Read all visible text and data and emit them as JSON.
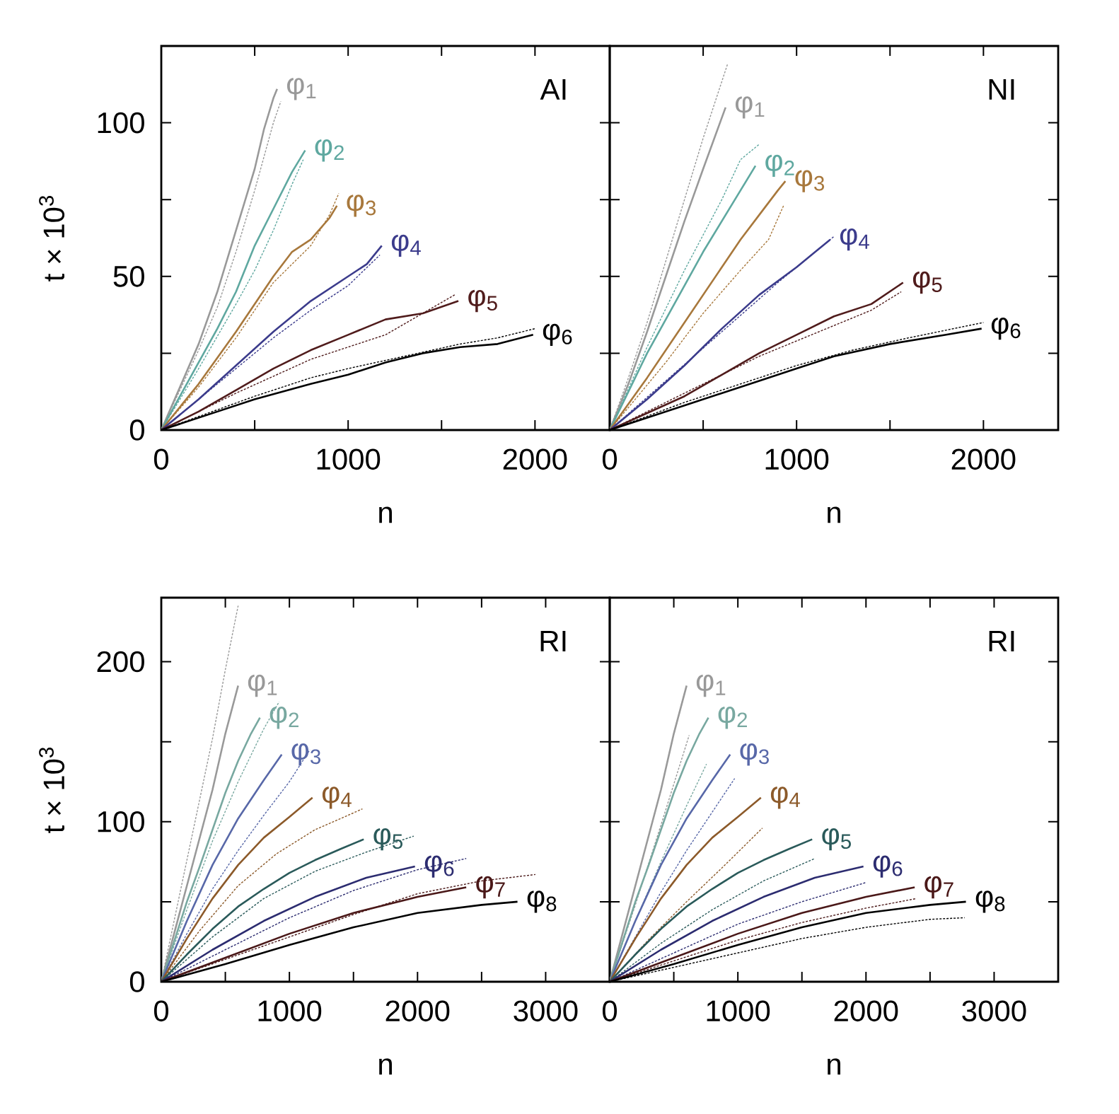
{
  "chart_data": [
    {
      "type": "line",
      "xlabel": "n",
      "ylabel": "t × 10$^{3}$",
      "annotations": [
        "AI"
      ],
      "xlim": [
        0,
        2400
      ],
      "ylim": [
        0,
        125
      ],
      "xticks": [
        0,
        {
          "value": 500,
          "label": null
        },
        1000,
        {
          "value": 1500,
          "label": null
        },
        2000
      ],
      "yticks": [
        0,
        {
          "value": 25,
          "label": null
        },
        50,
        {
          "value": 75,
          "label": null
        },
        100
      ],
      "marker": "none",
      "series": [
        {
          "name": "φ$_{1}$",
          "color": "#999999",
          "line_style": "solid",
          "x": [
            0,
            100,
            200,
            300,
            400,
            500,
            550,
            600,
            620
          ],
          "values": [
            0,
            14,
            28,
            45,
            65,
            85,
            98,
            108,
            111
          ]
        },
        {
          "color": "#999999",
          "line_style": "dotted",
          "x": [
            0,
            100,
            200,
            300,
            400,
            500,
            600,
            640
          ],
          "values": [
            0,
            13,
            26,
            40,
            58,
            78,
            100,
            107
          ]
        },
        {
          "name": "φ$_{2}$",
          "color": "#5fa8a0",
          "line_style": "solid",
          "x": [
            0,
            100,
            200,
            300,
            400,
            500,
            600,
            700,
            770
          ],
          "values": [
            0,
            11,
            22,
            33,
            45,
            60,
            72,
            84,
            91
          ]
        },
        {
          "color": "#5fa8a0",
          "line_style": "dotted",
          "x": [
            0,
            200,
            400,
            500,
            600,
            700,
            760
          ],
          "values": [
            0,
            20,
            41,
            52,
            65,
            80,
            88
          ]
        },
        {
          "name": "φ$_{3}$",
          "color": "#a8783c",
          "line_style": "solid",
          "x": [
            0,
            200,
            400,
            600,
            700,
            800,
            900,
            940
          ],
          "values": [
            0,
            15,
            32,
            50,
            58,
            62,
            69,
            73
          ]
        },
        {
          "color": "#a8783c",
          "line_style": "dotted",
          "x": [
            0,
            200,
            400,
            600,
            800,
            900,
            950
          ],
          "values": [
            0,
            14,
            30,
            48,
            60,
            70,
            77
          ]
        },
        {
          "name": "φ$_{4}$",
          "color": "#3c3c8c",
          "line_style": "solid",
          "x": [
            0,
            200,
            400,
            600,
            800,
            1000,
            1100,
            1180
          ],
          "values": [
            0,
            10,
            21,
            32,
            42,
            50,
            54,
            60
          ]
        },
        {
          "color": "#3c3c8c",
          "line_style": "dotted",
          "x": [
            0,
            300,
            600,
            800,
            1000,
            1170
          ],
          "values": [
            0,
            15,
            30,
            39,
            47,
            57
          ]
        },
        {
          "name": "φ$_{5}$",
          "color": "#501c1c",
          "line_style": "solid",
          "x": [
            0,
            200,
            400,
            600,
            800,
            1000,
            1200,
            1400,
            1590
          ],
          "values": [
            0,
            6,
            13,
            20,
            26,
            31,
            36,
            38,
            42
          ]
        },
        {
          "color": "#501c1c",
          "line_style": "dotted",
          "x": [
            0,
            400,
            800,
            1000,
            1200,
            1400,
            1570
          ],
          "values": [
            0,
            12,
            23,
            27,
            31,
            38,
            44
          ]
        },
        {
          "name": "φ$_{6}$",
          "color": "#000000",
          "line_style": "solid",
          "x": [
            0,
            200,
            500,
            800,
            1000,
            1200,
            1400,
            1600,
            1800,
            1990
          ],
          "values": [
            0,
            4,
            10,
            15,
            18,
            22,
            25,
            27,
            28,
            31
          ]
        },
        {
          "color": "#000000",
          "line_style": "dotted",
          "x": [
            0,
            500,
            800,
            1000,
            1300,
            1600,
            1800,
            2000
          ],
          "values": [
            0,
            11,
            17,
            20,
            24,
            28,
            30,
            33
          ]
        }
      ]
    },
    {
      "type": "line",
      "xlabel": "n",
      "annotations": [
        "NI"
      ],
      "xlim": [
        0,
        2400
      ],
      "ylim": [
        0,
        125
      ],
      "tick_labels": "x",
      "xticks": [
        0,
        {
          "value": 500,
          "label": null
        },
        1000,
        {
          "value": 1500,
          "label": null
        },
        2000
      ],
      "yticks": [
        0,
        {
          "value": 25,
          "label": null
        },
        50,
        {
          "value": 75,
          "label": null
        },
        100
      ],
      "marker": "none",
      "series": [
        {
          "name": "φ$_{1}$",
          "color": "#999999",
          "line_style": "solid",
          "x": [
            0,
            100,
            200,
            300,
            400,
            500,
            620
          ],
          "values": [
            0,
            15,
            32,
            50,
            68,
            85,
            105
          ]
        },
        {
          "color": "#999999",
          "line_style": "dotted",
          "x": [
            0,
            100,
            200,
            300,
            400,
            500,
            630
          ],
          "values": [
            0,
            17,
            35,
            55,
            75,
            95,
            119
          ]
        },
        {
          "name": "φ$_{2}$",
          "color": "#5fa8a0",
          "line_style": "solid",
          "x": [
            0,
            200,
            400,
            500,
            600,
            700,
            780
          ],
          "values": [
            0,
            25,
            47,
            58,
            68,
            78,
            86
          ]
        },
        {
          "color": "#5fa8a0",
          "line_style": "dotted",
          "x": [
            0,
            200,
            400,
            600,
            700,
            800
          ],
          "values": [
            0,
            27,
            52,
            75,
            88,
            93
          ]
        },
        {
          "name": "φ$_{3}$",
          "color": "#a8783c",
          "line_style": "solid",
          "x": [
            0,
            200,
            400,
            600,
            700,
            800,
            900,
            940
          ],
          "values": [
            0,
            17,
            35,
            53,
            62,
            70,
            78,
            81
          ]
        },
        {
          "color": "#a8783c",
          "line_style": "dotted",
          "x": [
            0,
            300,
            500,
            700,
            850,
            930
          ],
          "values": [
            0,
            22,
            38,
            52,
            62,
            73
          ]
        },
        {
          "name": "φ$_{4}$",
          "color": "#3c3c8c",
          "line_style": "solid",
          "x": [
            0,
            200,
            400,
            600,
            800,
            1000,
            1100,
            1180
          ],
          "values": [
            0,
            10,
            21,
            33,
            44,
            53,
            58,
            62
          ]
        },
        {
          "color": "#3c3c8c",
          "line_style": "dotted",
          "x": [
            0,
            300,
            600,
            900,
            1100,
            1200
          ],
          "values": [
            0,
            16,
            32,
            48,
            58,
            63
          ]
        },
        {
          "name": "φ$_{5}$",
          "color": "#501c1c",
          "line_style": "solid",
          "x": [
            0,
            400,
            800,
            1000,
            1200,
            1400,
            1570
          ],
          "values": [
            0,
            11,
            25,
            31,
            37,
            41,
            48
          ]
        },
        {
          "color": "#501c1c",
          "line_style": "dotted",
          "x": [
            0,
            400,
            800,
            1000,
            1200,
            1400,
            1560
          ],
          "values": [
            0,
            12,
            24,
            29,
            34,
            39,
            45
          ]
        },
        {
          "name": "φ$_{6}$",
          "color": "#000000",
          "line_style": "solid",
          "x": [
            0,
            400,
            800,
            1000,
            1200,
            1500,
            1800,
            1990
          ],
          "values": [
            0,
            8,
            16,
            20,
            24,
            28,
            31,
            33
          ]
        },
        {
          "color": "#000000",
          "line_style": "dotted",
          "x": [
            0,
            400,
            800,
            1000,
            1300,
            1600,
            2000
          ],
          "values": [
            0,
            9,
            17,
            21,
            26,
            30,
            35
          ]
        }
      ]
    },
    {
      "type": "line",
      "xlabel": "n",
      "ylabel": "t × 10$^{3}$",
      "annotations": [
        "RI"
      ],
      "xlim": [
        0,
        3500
      ],
      "ylim": [
        0,
        240
      ],
      "xticks": [
        0,
        {
          "value": 500,
          "label": null
        },
        1000,
        {
          "value": 1500,
          "label": null
        },
        2000,
        {
          "value": 2500,
          "label": null
        },
        3000
      ],
      "yticks": [
        0,
        {
          "value": 50,
          "label": null
        },
        100,
        {
          "value": 150,
          "label": null
        },
        200
      ],
      "marker": "none",
      "series": [
        {
          "name": "φ$_{1}$",
          "color": "#999999",
          "line_style": "solid",
          "x": [
            0,
            100,
            200,
            300,
            400,
            500,
            600
          ],
          "values": [
            0,
            30,
            60,
            90,
            120,
            155,
            185
          ]
        },
        {
          "color": "#999999",
          "line_style": "dotted",
          "x": [
            0,
            100,
            200,
            300,
            400,
            500,
            600
          ],
          "values": [
            0,
            38,
            76,
            114,
            152,
            195,
            235
          ]
        },
        {
          "name": "φ$_{2}$",
          "color": "#78a8a0",
          "line_style": "solid",
          "x": [
            0,
            100,
            200,
            300,
            400,
            500,
            600,
            700,
            770
          ],
          "values": [
            0,
            25,
            50,
            72,
            95,
            118,
            138,
            155,
            165
          ]
        },
        {
          "color": "#78a8a0",
          "line_style": "dotted",
          "x": [
            0,
            200,
            400,
            600,
            800,
            920
          ],
          "values": [
            0,
            45,
            88,
            125,
            158,
            175
          ]
        },
        {
          "name": "φ$_{3}$",
          "color": "#5868a8",
          "line_style": "solid",
          "x": [
            0,
            200,
            400,
            600,
            800,
            940
          ],
          "values": [
            0,
            38,
            73,
            102,
            126,
            142
          ]
        },
        {
          "color": "#5868a8",
          "line_style": "dotted",
          "x": [
            0,
            200,
            400,
            600,
            800,
            1000,
            1160
          ],
          "values": [
            0,
            30,
            58,
            82,
            104,
            125,
            145
          ]
        },
        {
          "name": "φ$_{4}$",
          "color": "#8c5a2a",
          "line_style": "solid",
          "x": [
            0,
            200,
            400,
            600,
            800,
            1000,
            1180
          ],
          "values": [
            0,
            27,
            52,
            73,
            90,
            103,
            115
          ]
        },
        {
          "color": "#8c5a2a",
          "line_style": "dotted",
          "x": [
            0,
            300,
            600,
            900,
            1200,
            1400,
            1570
          ],
          "values": [
            0,
            32,
            60,
            80,
            95,
            102,
            108
          ]
        },
        {
          "name": "φ$_{5}$",
          "color": "#2a5a5a",
          "line_style": "solid",
          "x": [
            0,
            200,
            400,
            600,
            800,
            1000,
            1200,
            1400,
            1580
          ],
          "values": [
            0,
            17,
            33,
            47,
            58,
            68,
            76,
            83,
            89
          ]
        },
        {
          "color": "#2a5a5a",
          "line_style": "dotted",
          "x": [
            0,
            400,
            800,
            1200,
            1600,
            1970
          ],
          "values": [
            0,
            28,
            52,
            69,
            81,
            91
          ]
        },
        {
          "name": "φ$_{6}$",
          "color": "#2c2c70",
          "line_style": "solid",
          "x": [
            0,
            400,
            800,
            1200,
            1600,
            1980
          ],
          "values": [
            0,
            20,
            38,
            53,
            65,
            72
          ]
        },
        {
          "color": "#2c2c70",
          "line_style": "dotted",
          "x": [
            0,
            500,
            1000,
            1500,
            2000,
            2380
          ],
          "values": [
            0,
            20,
            40,
            57,
            70,
            77
          ]
        },
        {
          "name": "φ$_{7}$",
          "color": "#4a1818",
          "line_style": "solid",
          "x": [
            0,
            500,
            1000,
            1500,
            2000,
            2380
          ],
          "values": [
            0,
            15,
            30,
            43,
            53,
            59
          ]
        },
        {
          "color": "#4a1818",
          "line_style": "dotted",
          "x": [
            0,
            500,
            1000,
            1500,
            2000,
            2500,
            2920
          ],
          "values": [
            0,
            14,
            28,
            42,
            55,
            63,
            67
          ]
        },
        {
          "name": "φ$_{8}$",
          "color": "#000000",
          "line_style": "solid",
          "x": [
            0,
            500,
            1000,
            1500,
            2000,
            2500,
            2780
          ],
          "values": [
            0,
            11,
            23,
            34,
            43,
            48,
            50
          ]
        }
      ]
    },
    {
      "type": "line",
      "xlabel": "n",
      "annotations": [
        "RI"
      ],
      "xlim": [
        0,
        3500
      ],
      "ylim": [
        0,
        240
      ],
      "tick_labels": "x",
      "xticks": [
        0,
        {
          "value": 500,
          "label": null
        },
        1000,
        {
          "value": 1500,
          "label": null
        },
        2000,
        {
          "value": 2500,
          "label": null
        },
        3000
      ],
      "yticks": [
        0,
        {
          "value": 50,
          "label": null
        },
        100,
        {
          "value": 150,
          "label": null
        },
        200
      ],
      "marker": "none",
      "series": [
        {
          "name": "φ$_{1}$",
          "color": "#999999",
          "line_style": "solid",
          "x": [
            0,
            100,
            200,
            300,
            400,
            500,
            600
          ],
          "values": [
            0,
            30,
            60,
            90,
            120,
            155,
            185
          ]
        },
        {
          "color": "#999999",
          "line_style": "dotted",
          "x": [
            0,
            200,
            400,
            620
          ],
          "values": [
            0,
            48,
            98,
            154
          ]
        },
        {
          "name": "φ$_{2}$",
          "color": "#78a8a0",
          "line_style": "solid",
          "x": [
            0,
            100,
            200,
            300,
            400,
            500,
            600,
            700,
            770
          ],
          "values": [
            0,
            25,
            50,
            72,
            95,
            118,
            138,
            155,
            165
          ]
        },
        {
          "color": "#78a8a0",
          "line_style": "dotted",
          "x": [
            0,
            200,
            400,
            600,
            755
          ],
          "values": [
            0,
            38,
            75,
            110,
            136
          ]
        },
        {
          "name": "φ$_{3}$",
          "color": "#5868a8",
          "line_style": "solid",
          "x": [
            0,
            200,
            400,
            600,
            800,
            940
          ],
          "values": [
            0,
            38,
            73,
            102,
            126,
            142
          ]
        },
        {
          "color": "#5868a8",
          "line_style": "dotted",
          "x": [
            0,
            200,
            400,
            600,
            800,
            975
          ],
          "values": [
            0,
            28,
            56,
            82,
            106,
            127
          ]
        },
        {
          "name": "φ$_{4}$",
          "color": "#8c5a2a",
          "line_style": "solid",
          "x": [
            0,
            200,
            400,
            600,
            800,
            1000,
            1180
          ],
          "values": [
            0,
            27,
            52,
            73,
            90,
            103,
            115
          ]
        },
        {
          "color": "#8c5a2a",
          "line_style": "dotted",
          "x": [
            0,
            300,
            600,
            900,
            1191
          ],
          "values": [
            0,
            26,
            50,
            73,
            96
          ]
        },
        {
          "name": "φ$_{5}$",
          "color": "#2a5a5a",
          "line_style": "solid",
          "x": [
            0,
            200,
            400,
            600,
            800,
            1000,
            1200,
            1400,
            1580
          ],
          "values": [
            0,
            17,
            33,
            47,
            58,
            68,
            76,
            83,
            89
          ]
        },
        {
          "color": "#2a5a5a",
          "line_style": "dotted",
          "x": [
            0,
            400,
            800,
            1200,
            1600
          ],
          "values": [
            0,
            24,
            45,
            63,
            77
          ]
        },
        {
          "name": "φ$_{6}$",
          "color": "#2c2c70",
          "line_style": "solid",
          "x": [
            0,
            400,
            800,
            1200,
            1600,
            1980
          ],
          "values": [
            0,
            20,
            38,
            53,
            65,
            72
          ]
        },
        {
          "color": "#2c2c70",
          "line_style": "dotted",
          "x": [
            0,
            500,
            1000,
            1500,
            2000
          ],
          "values": [
            0,
            18,
            36,
            50,
            62
          ]
        },
        {
          "name": "φ$_{7}$",
          "color": "#4a1818",
          "line_style": "solid",
          "x": [
            0,
            500,
            1000,
            1500,
            2000,
            2380
          ],
          "values": [
            0,
            15,
            30,
            43,
            53,
            59
          ]
        },
        {
          "color": "#4a1818",
          "line_style": "dotted",
          "x": [
            0,
            500,
            1000,
            1500,
            2000,
            2395
          ],
          "values": [
            0,
            13,
            26,
            37,
            46,
            52
          ]
        },
        {
          "name": "φ$_{8}$",
          "color": "#000000",
          "line_style": "solid",
          "x": [
            0,
            500,
            1000,
            1500,
            2000,
            2500,
            2780
          ],
          "values": [
            0,
            11,
            23,
            34,
            43,
            48,
            50
          ]
        },
        {
          "color": "#000000",
          "line_style": "dotted",
          "x": [
            0,
            500,
            1000,
            1500,
            2000,
            2500,
            2770
          ],
          "values": [
            0,
            9,
            18,
            27,
            34,
            39,
            40
          ]
        }
      ]
    }
  ]
}
